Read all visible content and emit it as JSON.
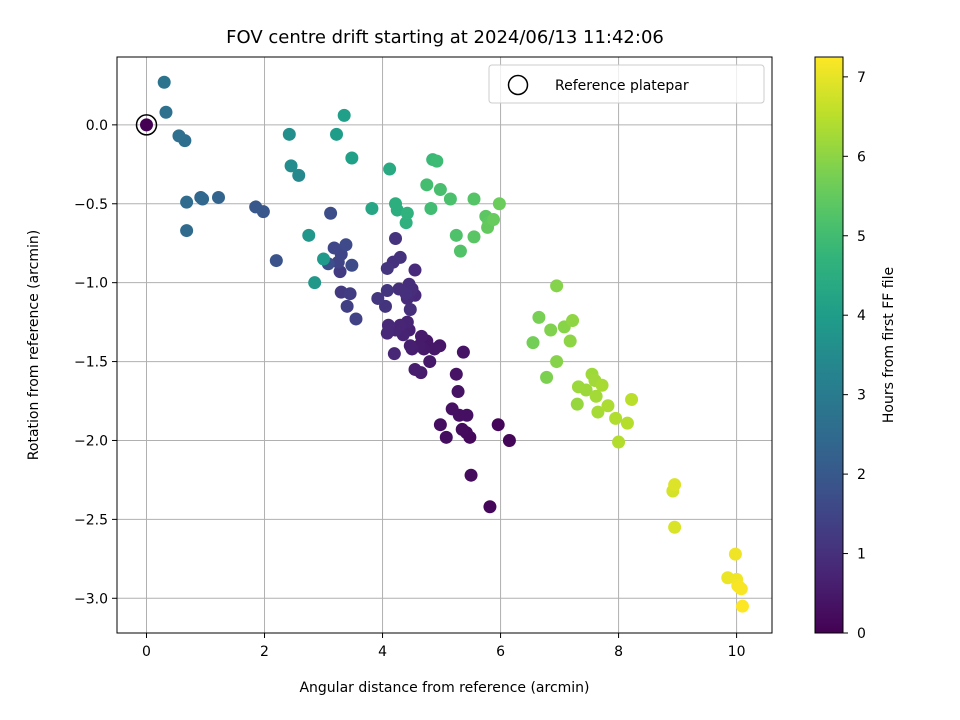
{
  "chart_data": {
    "type": "scatter",
    "title": "FOV centre drift starting at 2024/06/13 11:42:06",
    "xlabel": "Angular distance from reference (arcmin)",
    "ylabel": "Rotation from reference (arcmin)",
    "xlim": [
      -0.5,
      10.6
    ],
    "ylim": [
      -3.22,
      0.43
    ],
    "xticks": [
      0,
      2,
      4,
      6,
      8,
      10
    ],
    "xtick_labels": [
      "0",
      "2",
      "4",
      "6",
      "8",
      "10"
    ],
    "yticks": [
      0.0,
      -0.5,
      -1.0,
      -1.5,
      -2.0,
      -2.5,
      -3.0
    ],
    "ytick_labels": [
      "0.0",
      "−0.5",
      "−1.0",
      "−1.5",
      "−2.0",
      "−2.5",
      "−3.0"
    ],
    "grid": true,
    "legend": {
      "position": "top-right",
      "entries": [
        "Reference platepar"
      ]
    },
    "reference_point": {
      "x": 0,
      "y": 0
    },
    "colorbar": {
      "label": "Hours from first FF file",
      "colormap": "viridis",
      "range": [
        0,
        7.25
      ],
      "ticks": [
        0,
        1,
        2,
        3,
        4,
        5,
        6,
        7
      ],
      "tick_labels": [
        "0",
        "1",
        "2",
        "3",
        "4",
        "5",
        "6",
        "7"
      ]
    },
    "points": [
      {
        "x": 0.0,
        "y": 0.0,
        "c": 0.0
      },
      {
        "x": 5.96,
        "y": -1.9,
        "c": 0.1
      },
      {
        "x": 6.15,
        "y": -2.0,
        "c": 0.1
      },
      {
        "x": 5.82,
        "y": -2.42,
        "c": 0.12
      },
      {
        "x": 5.48,
        "y": -1.98,
        "c": 0.15
      },
      {
        "x": 5.42,
        "y": -1.95,
        "c": 0.18
      },
      {
        "x": 5.5,
        "y": -2.22,
        "c": 0.2
      },
      {
        "x": 5.35,
        "y": -1.93,
        "c": 0.22
      },
      {
        "x": 5.08,
        "y": -1.98,
        "c": 0.25
      },
      {
        "x": 4.98,
        "y": -1.9,
        "c": 0.27
      },
      {
        "x": 5.3,
        "y": -1.84,
        "c": 0.3
      },
      {
        "x": 5.43,
        "y": -1.84,
        "c": 0.32
      },
      {
        "x": 5.18,
        "y": -1.8,
        "c": 0.34
      },
      {
        "x": 5.28,
        "y": -1.69,
        "c": 0.36
      },
      {
        "x": 5.25,
        "y": -1.58,
        "c": 0.38
      },
      {
        "x": 5.37,
        "y": -1.44,
        "c": 0.4
      },
      {
        "x": 4.97,
        "y": -1.4,
        "c": 0.42
      },
      {
        "x": 4.88,
        "y": -1.42,
        "c": 0.44
      },
      {
        "x": 4.75,
        "y": -1.37,
        "c": 0.46
      },
      {
        "x": 4.8,
        "y": -1.5,
        "c": 0.48
      },
      {
        "x": 4.7,
        "y": -1.42,
        "c": 0.5
      },
      {
        "x": 4.66,
        "y": -1.34,
        "c": 0.52
      },
      {
        "x": 4.62,
        "y": -1.4,
        "c": 0.54
      },
      {
        "x": 4.65,
        "y": -1.57,
        "c": 0.56
      },
      {
        "x": 4.55,
        "y": -1.55,
        "c": 0.58
      },
      {
        "x": 4.5,
        "y": -1.42,
        "c": 0.6
      },
      {
        "x": 4.47,
        "y": -1.4,
        "c": 0.62
      },
      {
        "x": 4.45,
        "y": -1.3,
        "c": 0.65
      },
      {
        "x": 4.38,
        "y": -1.3,
        "c": 0.68
      },
      {
        "x": 4.35,
        "y": -1.33,
        "c": 0.7
      },
      {
        "x": 4.42,
        "y": -1.25,
        "c": 0.72
      },
      {
        "x": 4.3,
        "y": -1.27,
        "c": 0.74
      },
      {
        "x": 4.22,
        "y": -1.3,
        "c": 0.76
      },
      {
        "x": 4.2,
        "y": -1.45,
        "c": 0.78
      },
      {
        "x": 4.08,
        "y": -1.32,
        "c": 0.8
      },
      {
        "x": 4.1,
        "y": -1.27,
        "c": 0.82
      },
      {
        "x": 4.55,
        "y": -1.08,
        "c": 0.84
      },
      {
        "x": 4.5,
        "y": -1.04,
        "c": 0.86
      },
      {
        "x": 4.55,
        "y": -0.92,
        "c": 0.88
      },
      {
        "x": 4.42,
        "y": -1.1,
        "c": 0.9
      },
      {
        "x": 4.48,
        "y": -1.05,
        "c": 0.92
      },
      {
        "x": 4.45,
        "y": -1.01,
        "c": 0.94
      },
      {
        "x": 4.47,
        "y": -1.17,
        "c": 0.96
      },
      {
        "x": 4.4,
        "y": -1.07,
        "c": 0.98
      },
      {
        "x": 4.28,
        "y": -1.04,
        "c": 1.0
      },
      {
        "x": 4.18,
        "y": -0.87,
        "c": 1.02
      },
      {
        "x": 4.3,
        "y": -0.84,
        "c": 1.04
      },
      {
        "x": 4.22,
        "y": -0.72,
        "c": 1.06
      },
      {
        "x": 4.08,
        "y": -0.91,
        "c": 1.08
      },
      {
        "x": 4.05,
        "y": -1.15,
        "c": 1.1
      },
      {
        "x": 4.08,
        "y": -1.05,
        "c": 1.12
      },
      {
        "x": 3.92,
        "y": -1.1,
        "c": 1.14
      },
      {
        "x": 3.3,
        "y": -1.06,
        "c": 1.2
      },
      {
        "x": 3.28,
        "y": -0.93,
        "c": 1.25
      },
      {
        "x": 3.45,
        "y": -1.07,
        "c": 1.3
      },
      {
        "x": 3.4,
        "y": -1.15,
        "c": 1.35
      },
      {
        "x": 3.55,
        "y": -1.23,
        "c": 1.4
      },
      {
        "x": 3.25,
        "y": -0.87,
        "c": 1.45
      },
      {
        "x": 3.3,
        "y": -0.82,
        "c": 1.5
      },
      {
        "x": 3.18,
        "y": -0.78,
        "c": 1.55
      },
      {
        "x": 3.38,
        "y": -0.76,
        "c": 1.6
      },
      {
        "x": 3.48,
        "y": -0.89,
        "c": 1.65
      },
      {
        "x": 3.12,
        "y": -0.56,
        "c": 1.7
      },
      {
        "x": 3.08,
        "y": -0.88,
        "c": 1.75
      },
      {
        "x": 2.2,
        "y": -0.86,
        "c": 1.85
      },
      {
        "x": 1.98,
        "y": -0.55,
        "c": 1.95
      },
      {
        "x": 1.85,
        "y": -0.52,
        "c": 2.0
      },
      {
        "x": 1.22,
        "y": -0.46,
        "c": 2.3
      },
      {
        "x": 0.92,
        "y": -0.46,
        "c": 2.4
      },
      {
        "x": 0.95,
        "y": -0.47,
        "c": 2.45
      },
      {
        "x": 0.68,
        "y": -0.67,
        "c": 2.5
      },
      {
        "x": 0.68,
        "y": -0.49,
        "c": 2.55
      },
      {
        "x": 0.65,
        "y": -0.1,
        "c": 2.6
      },
      {
        "x": 0.55,
        "y": -0.07,
        "c": 2.65
      },
      {
        "x": 0.33,
        "y": 0.08,
        "c": 2.7
      },
      {
        "x": 0.3,
        "y": 0.27,
        "c": 2.75
      },
      {
        "x": 2.58,
        "y": -0.32,
        "c": 3.4
      },
      {
        "x": 2.45,
        "y": -0.26,
        "c": 3.5
      },
      {
        "x": 2.42,
        "y": -0.06,
        "c": 3.6
      },
      {
        "x": 2.75,
        "y": -0.7,
        "c": 3.8
      },
      {
        "x": 2.85,
        "y": -1.0,
        "c": 3.85
      },
      {
        "x": 3.0,
        "y": -0.85,
        "c": 3.9
      },
      {
        "x": 3.22,
        "y": -0.06,
        "c": 4.0
      },
      {
        "x": 3.35,
        "y": 0.06,
        "c": 4.05
      },
      {
        "x": 3.48,
        "y": -0.21,
        "c": 4.1
      },
      {
        "x": 3.82,
        "y": -0.53,
        "c": 4.3
      },
      {
        "x": 4.12,
        "y": -0.28,
        "c": 4.4
      },
      {
        "x": 4.25,
        "y": -0.54,
        "c": 4.5
      },
      {
        "x": 4.22,
        "y": -0.5,
        "c": 4.55
      },
      {
        "x": 4.4,
        "y": -0.62,
        "c": 4.6
      },
      {
        "x": 4.42,
        "y": -0.56,
        "c": 4.65
      },
      {
        "x": 4.85,
        "y": -0.22,
        "c": 4.9
      },
      {
        "x": 4.92,
        "y": -0.23,
        "c": 4.95
      },
      {
        "x": 4.82,
        "y": -0.53,
        "c": 5.0
      },
      {
        "x": 4.75,
        "y": -0.38,
        "c": 5.05
      },
      {
        "x": 4.98,
        "y": -0.41,
        "c": 5.1
      },
      {
        "x": 5.15,
        "y": -0.47,
        "c": 5.15
      },
      {
        "x": 5.25,
        "y": -0.7,
        "c": 5.2
      },
      {
        "x": 5.32,
        "y": -0.8,
        "c": 5.25
      },
      {
        "x": 5.55,
        "y": -0.47,
        "c": 5.3
      },
      {
        "x": 5.55,
        "y": -0.71,
        "c": 5.35
      },
      {
        "x": 5.75,
        "y": -0.58,
        "c": 5.4
      },
      {
        "x": 5.8,
        "y": -0.62,
        "c": 5.45
      },
      {
        "x": 5.78,
        "y": -0.65,
        "c": 5.5
      },
      {
        "x": 5.88,
        "y": -0.6,
        "c": 5.55
      },
      {
        "x": 5.98,
        "y": -0.5,
        "c": 5.6
      },
      {
        "x": 6.55,
        "y": -1.38,
        "c": 5.7
      },
      {
        "x": 6.65,
        "y": -1.22,
        "c": 5.75
      },
      {
        "x": 6.78,
        "y": -1.6,
        "c": 5.8
      },
      {
        "x": 6.85,
        "y": -1.3,
        "c": 5.85
      },
      {
        "x": 6.95,
        "y": -1.02,
        "c": 5.9
      },
      {
        "x": 6.95,
        "y": -1.5,
        "c": 5.92
      },
      {
        "x": 7.08,
        "y": -1.28,
        "c": 5.95
      },
      {
        "x": 7.18,
        "y": -1.37,
        "c": 6.0
      },
      {
        "x": 7.22,
        "y": -1.24,
        "c": 6.02
      },
      {
        "x": 7.3,
        "y": -1.77,
        "c": 6.1
      },
      {
        "x": 7.32,
        "y": -1.66,
        "c": 6.15
      },
      {
        "x": 7.45,
        "y": -1.68,
        "c": 6.18
      },
      {
        "x": 7.55,
        "y": -1.58,
        "c": 6.2
      },
      {
        "x": 7.6,
        "y": -1.62,
        "c": 6.22
      },
      {
        "x": 7.62,
        "y": -1.72,
        "c": 6.25
      },
      {
        "x": 7.65,
        "y": -1.82,
        "c": 6.28
      },
      {
        "x": 7.72,
        "y": -1.65,
        "c": 6.3
      },
      {
        "x": 7.82,
        "y": -1.78,
        "c": 6.35
      },
      {
        "x": 7.95,
        "y": -1.86,
        "c": 6.4
      },
      {
        "x": 8.0,
        "y": -2.01,
        "c": 6.42
      },
      {
        "x": 8.15,
        "y": -1.89,
        "c": 6.45
      },
      {
        "x": 8.22,
        "y": -1.74,
        "c": 6.5
      },
      {
        "x": 8.92,
        "y": -2.32,
        "c": 6.8
      },
      {
        "x": 8.95,
        "y": -2.55,
        "c": 6.85
      },
      {
        "x": 8.95,
        "y": -2.28,
        "c": 6.9
      },
      {
        "x": 9.85,
        "y": -2.87,
        "c": 7.05
      },
      {
        "x": 9.98,
        "y": -2.72,
        "c": 7.1
      },
      {
        "x": 10.0,
        "y": -2.88,
        "c": 7.12
      },
      {
        "x": 10.02,
        "y": -2.92,
        "c": 7.15
      },
      {
        "x": 10.08,
        "y": -2.94,
        "c": 7.18
      },
      {
        "x": 10.05,
        "y": -2.93,
        "c": 7.2
      },
      {
        "x": 10.1,
        "y": -3.05,
        "c": 7.25
      }
    ]
  }
}
